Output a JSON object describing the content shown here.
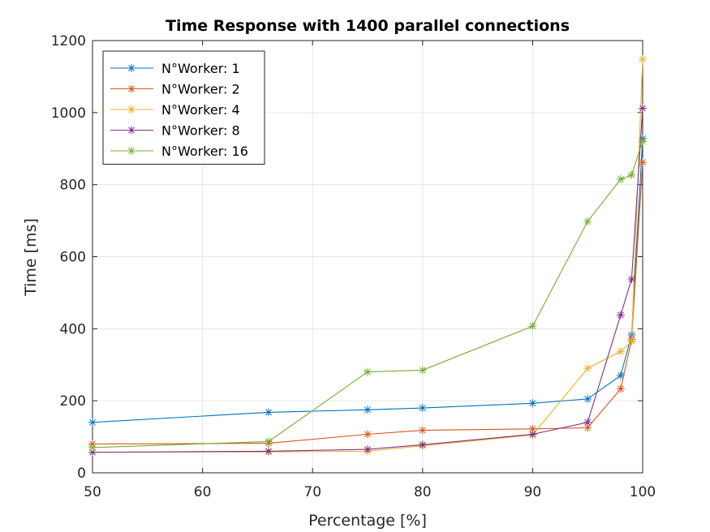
{
  "chart_data": {
    "type": "line",
    "title": "Time Response with 1400 parallel connections",
    "xlabel": "Percentage [%]",
    "ylabel": "Time [ms]",
    "xlim": [
      50,
      100
    ],
    "ylim": [
      0,
      1200
    ],
    "xticks": [
      50,
      60,
      70,
      80,
      90,
      100
    ],
    "yticks": [
      0,
      200,
      400,
      600,
      800,
      1000,
      1200
    ],
    "grid": true,
    "legend_position": "top-left",
    "x": [
      50,
      66,
      75,
      80,
      90,
      95,
      98,
      99,
      100
    ],
    "series": [
      {
        "name": "N°Worker: 1",
        "color": "#0072BD",
        "values": [
          140,
          168,
          175,
          180,
          193,
          205,
          270,
          383,
          928
        ]
      },
      {
        "name": "N°Worker: 2",
        "color": "#D95319",
        "values": [
          80,
          82,
          107,
          118,
          122,
          125,
          233,
          370,
          862
        ]
      },
      {
        "name": "N°Worker: 4",
        "color": "#EDB120",
        "values": [
          57,
          58,
          60,
          75,
          105,
          290,
          337,
          365,
          1148
        ]
      },
      {
        "name": "N°Worker: 8",
        "color": "#7E2F8E",
        "values": [
          57,
          60,
          65,
          78,
          107,
          140,
          438,
          538,
          1012
        ]
      },
      {
        "name": "N°Worker: 16",
        "color": "#77AC30",
        "values": [
          70,
          87,
          280,
          285,
          407,
          698,
          815,
          827,
          920
        ]
      }
    ]
  }
}
